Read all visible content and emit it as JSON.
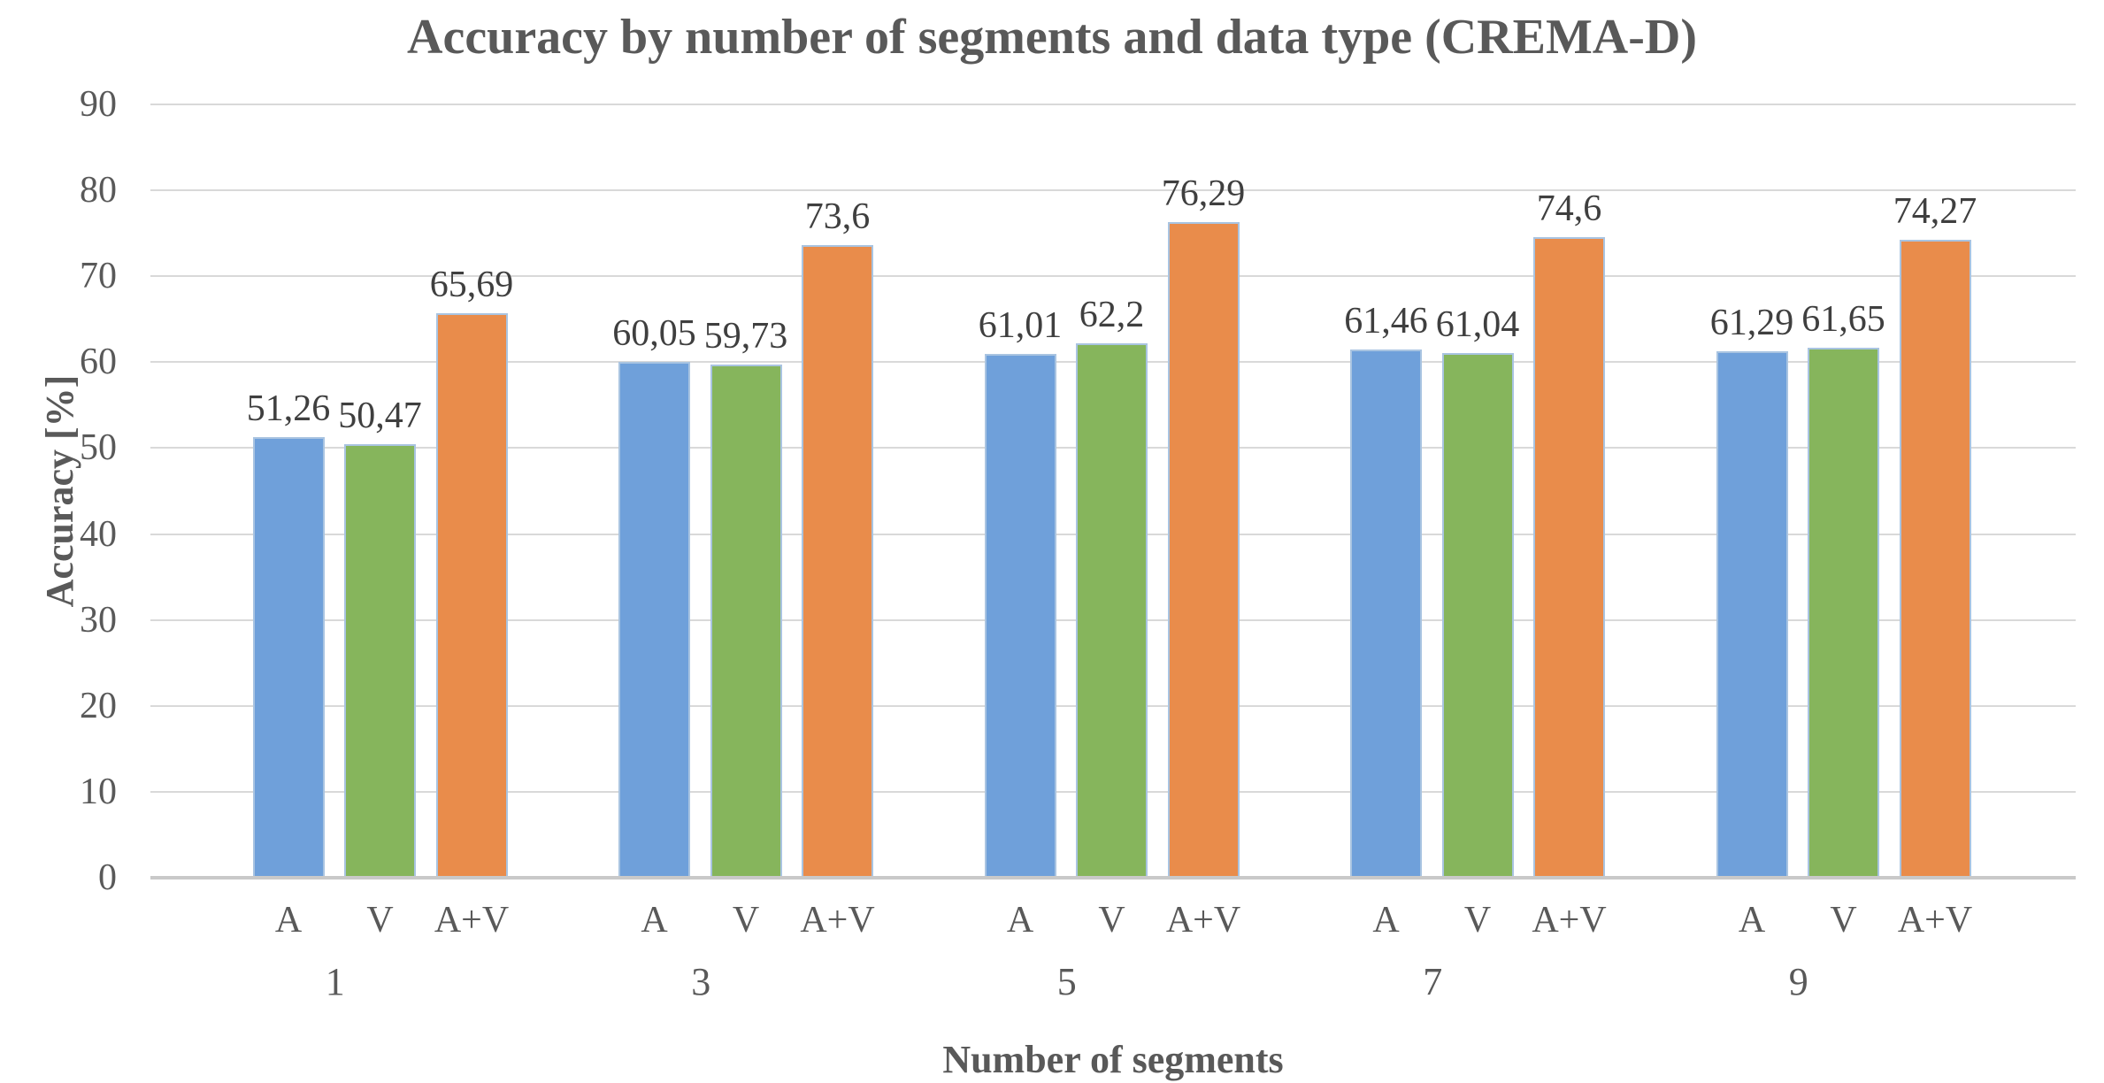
{
  "title": "Accuracy by number of segments and data type (CREMA-D)",
  "y_axis": {
    "label": "Accuracy [%]",
    "min": 0,
    "max": 90,
    "tick_step": 10
  },
  "x_axis": {
    "label": "Number of segments"
  },
  "chart_data": {
    "type": "bar",
    "title": "Accuracy by number of segments and data type (CREMA-D)",
    "xlabel": "Number of segments",
    "ylabel": "Accuracy [%]",
    "ylim": [
      0,
      90
    ],
    "ytick_step": 10,
    "grid": true,
    "legend": "none",
    "decimal_separator": ",",
    "categories": [
      "1",
      "3",
      "5",
      "7",
      "9"
    ],
    "series": [
      {
        "name": "A",
        "color": "#6FA0DA",
        "values": [
          51.26,
          60.05,
          61.01,
          61.46,
          61.29
        ]
      },
      {
        "name": "V",
        "color": "#86B55C",
        "values": [
          50.47,
          59.73,
          62.2,
          61.04,
          61.65
        ]
      },
      {
        "name": "A+V",
        "color": "#E98C4B",
        "values": [
          65.69,
          73.6,
          76.29,
          74.6,
          74.27
        ]
      }
    ],
    "bar_border_color": "#A9C4E1"
  },
  "colors": {
    "text_primary": "#595959",
    "value_label": "#3F3F3F",
    "gridline": "#D9D9D9",
    "axis_line": "#C9C9C9"
  }
}
